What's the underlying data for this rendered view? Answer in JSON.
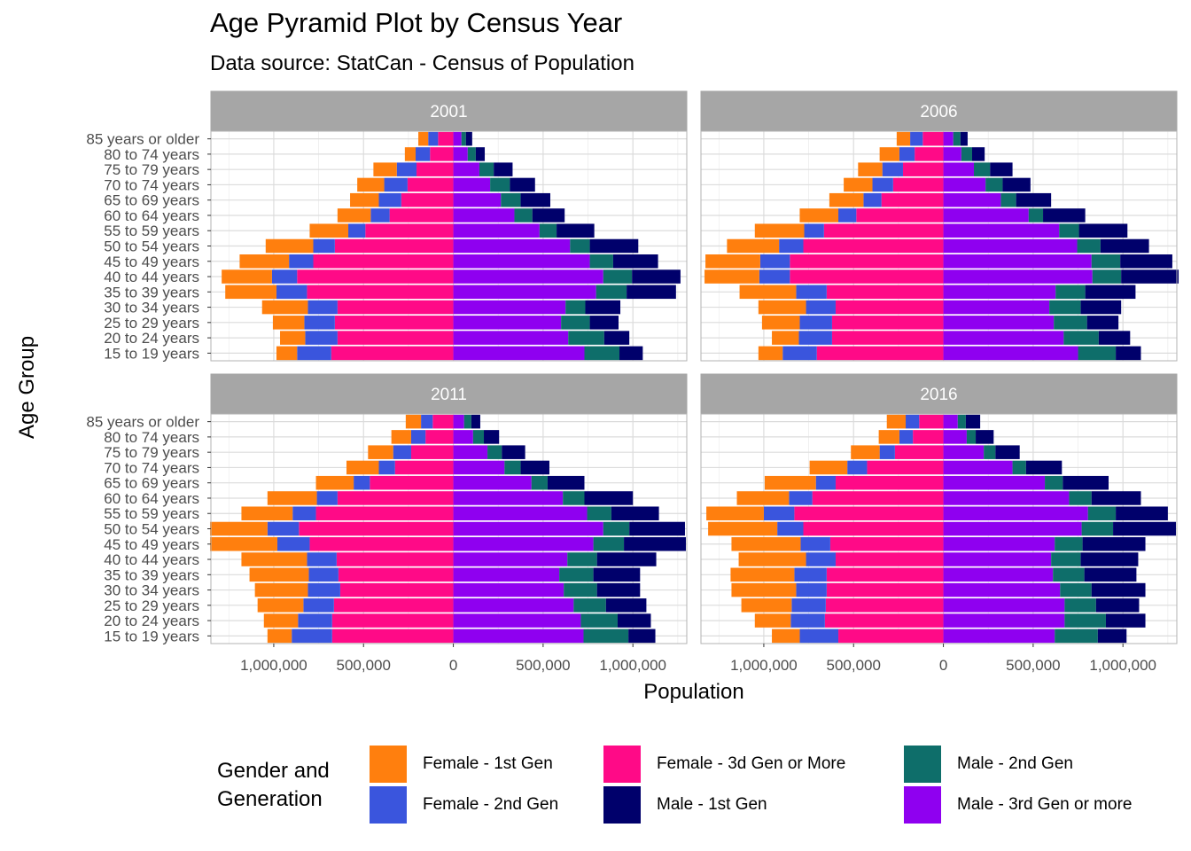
{
  "title": "Age Pyramid Plot by Census Year",
  "subtitle": "Data source: StatCan - Census of Population",
  "legend": {
    "title": "Gender and\nGeneration",
    "items": [
      {
        "label": "Female - 1st Gen",
        "color": "#ff7f0e"
      },
      {
        "label": "Female - 2nd Gen",
        "color": "#3a55dd"
      },
      {
        "label": "Female - 3d Gen or More",
        "color": "#ff0a87"
      },
      {
        "label": "Male - 1st Gen",
        "color": "#00006b"
      },
      {
        "label": "Male - 2nd Gen",
        "color": "#0e6e6a"
      },
      {
        "label": "Male - 3rd Gen or more",
        "color": "#8f00f0"
      }
    ]
  },
  "chart_data": {
    "type": "bar",
    "orientation": "horizontal-stacked-pyramid",
    "xlabel": "Population",
    "ylabel": "Age Group",
    "xlim": [
      -1350000,
      1300000
    ],
    "x_ticks": [
      -1000000,
      -500000,
      0,
      500000,
      1000000
    ],
    "x_tick_labels": [
      "1,000,000",
      "500,000",
      "0",
      "500,000",
      "1,000,000"
    ],
    "grid": true,
    "legend_position": "bottom",
    "categories": [
      "15 to 19 years",
      "20 to 24 years",
      "25 to 29 years",
      "30 to 34 years",
      "35 to 39 years",
      "40 to 44 years",
      "45 to 49 years",
      "50 to 54 years",
      "55 to 59 years",
      "60 to 64 years",
      "65 to 69 years",
      "70 to 74 years",
      "75 to 79 years",
      "80 to 74 years",
      "85 years or older"
    ],
    "series_order_left": [
      "Female - 3d Gen or More",
      "Female - 2nd Gen",
      "Female - 1st Gen"
    ],
    "series_order_right": [
      "Male - 3rd Gen or more",
      "Male - 2nd Gen",
      "Male - 1st Gen"
    ],
    "panels": [
      {
        "label": "2001",
        "series": [
          {
            "name": "Female - 1st Gen",
            "values": [
              -115000,
              -140000,
              -175000,
              -255000,
              -285000,
              -280000,
              -275000,
              -265000,
              -215000,
              -185000,
              -160000,
              -150000,
              -130000,
              -60000,
              -55000
            ]
          },
          {
            "name": "Female - 2nd Gen",
            "values": [
              -190000,
              -180000,
              -170000,
              -165000,
              -170000,
              -140000,
              -135000,
              -120000,
              -95000,
              -105000,
              -125000,
              -130000,
              -110000,
              -80000,
              -55000
            ]
          },
          {
            "name": "Female - 3d Gen or More",
            "values": [
              -680000,
              -645000,
              -660000,
              -645000,
              -815000,
              -870000,
              -780000,
              -660000,
              -490000,
              -355000,
              -290000,
              -255000,
              -205000,
              -130000,
              -85000
            ]
          },
          {
            "name": "Male - 3rd Gen or more",
            "values": [
              730000,
              640000,
              600000,
              625000,
              795000,
              835000,
              760000,
              650000,
              480000,
              340000,
              265000,
              205000,
              145000,
              80000,
              45000
            ]
          },
          {
            "name": "Male - 2nd Gen",
            "values": [
              195000,
              200000,
              160000,
              110000,
              170000,
              160000,
              130000,
              110000,
              95000,
              100000,
              110000,
              110000,
              80000,
              45000,
              25000
            ]
          },
          {
            "name": "Male - 1st Gen",
            "values": [
              130000,
              140000,
              160000,
              195000,
              275000,
              270000,
              250000,
              270000,
              210000,
              180000,
              165000,
              140000,
              105000,
              50000,
              35000
            ]
          }
        ]
      },
      {
        "label": "2006",
        "series": [
          {
            "name": "Female - 1st Gen",
            "values": [
              -135000,
              -150000,
              -210000,
              -265000,
              -315000,
              -305000,
              -305000,
              -290000,
              -275000,
              -215000,
              -190000,
              -160000,
              -135000,
              -110000,
              -75000
            ]
          },
          {
            "name": "Female - 2nd Gen",
            "values": [
              -190000,
              -185000,
              -180000,
              -165000,
              -170000,
              -170000,
              -165000,
              -135000,
              -110000,
              -100000,
              -100000,
              -115000,
              -115000,
              -85000,
              -70000
            ]
          },
          {
            "name": "Female - 3d Gen or More",
            "values": [
              -705000,
              -620000,
              -620000,
              -600000,
              -650000,
              -855000,
              -855000,
              -780000,
              -665000,
              -485000,
              -345000,
              -280000,
              -225000,
              -160000,
              -115000
            ]
          },
          {
            "name": "Male - 3rd Gen or more",
            "values": [
              750000,
              670000,
              615000,
              590000,
              625000,
              830000,
              825000,
              745000,
              645000,
              475000,
              320000,
              235000,
              170000,
              100000,
              55000
            ]
          },
          {
            "name": "Male - 2nd Gen",
            "values": [
              210000,
              195000,
              185000,
              175000,
              165000,
              160000,
              160000,
              130000,
              110000,
              80000,
              85000,
              95000,
              90000,
              60000,
              40000
            ]
          },
          {
            "name": "Male - 1st Gen",
            "values": [
              140000,
              175000,
              175000,
              225000,
              280000,
              320000,
              290000,
              270000,
              270000,
              235000,
              195000,
              155000,
              125000,
              70000,
              40000
            ]
          }
        ]
      },
      {
        "label": "2011",
        "series": [
          {
            "name": "Female - 1st Gen",
            "values": [
              -135000,
              -190000,
              -255000,
              -295000,
              -330000,
              -365000,
              -375000,
              -320000,
              -285000,
              -275000,
              -210000,
              -180000,
              -140000,
              -110000,
              -85000
            ]
          },
          {
            "name": "Female - 2nd Gen",
            "values": [
              -225000,
              -190000,
              -170000,
              -180000,
              -165000,
              -165000,
              -180000,
              -175000,
              -130000,
              -115000,
              -90000,
              -90000,
              -100000,
              -80000,
              -65000
            ]
          },
          {
            "name": "Female - 3d Gen or More",
            "values": [
              -675000,
              -675000,
              -665000,
              -630000,
              -640000,
              -650000,
              -800000,
              -860000,
              -765000,
              -645000,
              -465000,
              -325000,
              -235000,
              -155000,
              -115000
            ]
          },
          {
            "name": "Male - 3rd Gen or more",
            "values": [
              725000,
              710000,
              670000,
              615000,
              590000,
              635000,
              780000,
              835000,
              745000,
              610000,
              435000,
              285000,
              190000,
              110000,
              60000
            ]
          },
          {
            "name": "Male - 2nd Gen",
            "values": [
              250000,
              205000,
              180000,
              185000,
              190000,
              165000,
              170000,
              145000,
              135000,
              120000,
              90000,
              90000,
              80000,
              60000,
              40000
            ]
          },
          {
            "name": "Male - 1st Gen",
            "values": [
              150000,
              185000,
              225000,
              240000,
              260000,
              330000,
              345000,
              310000,
              265000,
              270000,
              205000,
              160000,
              130000,
              85000,
              50000
            ]
          }
        ]
      },
      {
        "label": "2016",
        "series": [
          {
            "name": "Female - 1st Gen",
            "values": [
              -155000,
              -200000,
              -280000,
              -360000,
              -355000,
              -375000,
              -385000,
              -385000,
              -320000,
              -290000,
              -285000,
              -210000,
              -160000,
              -115000,
              -105000
            ]
          },
          {
            "name": "Female - 2nd Gen",
            "values": [
              -215000,
              -190000,
              -190000,
              -170000,
              -180000,
              -165000,
              -165000,
              -145000,
              -170000,
              -130000,
              -110000,
              -110000,
              -85000,
              -75000,
              -75000
            ]
          },
          {
            "name": "Female - 3d Gen or More",
            "values": [
              -585000,
              -660000,
              -655000,
              -650000,
              -650000,
              -600000,
              -630000,
              -780000,
              -830000,
              -730000,
              -600000,
              -425000,
              -270000,
              -170000,
              -135000
            ]
          },
          {
            "name": "Male - 3rd Gen or more",
            "values": [
              620000,
              675000,
              675000,
              650000,
              610000,
              600000,
              620000,
              770000,
              805000,
              700000,
              565000,
              385000,
              225000,
              130000,
              80000
            ]
          },
          {
            "name": "Male - 2nd Gen",
            "values": [
              240000,
              230000,
              175000,
              175000,
              175000,
              165000,
              155000,
              175000,
              155000,
              125000,
              100000,
              75000,
              65000,
              50000,
              45000
            ]
          },
          {
            "name": "Male - 1st Gen",
            "values": [
              160000,
              220000,
              240000,
              300000,
              290000,
              320000,
              350000,
              350000,
              290000,
              275000,
              255000,
              200000,
              135000,
              100000,
              80000
            ]
          }
        ]
      }
    ]
  }
}
